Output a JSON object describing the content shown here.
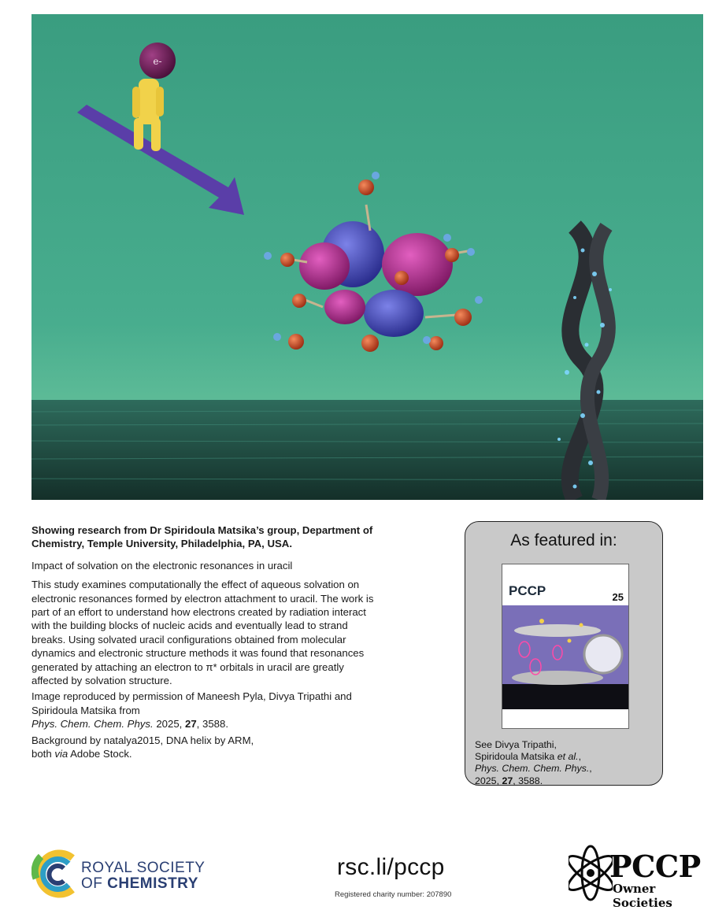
{
  "research_group": "Showing research from Dr Spiridoula Matsika’s group, Department of Chemistry, Temple University, Philadelphia, PA, USA.",
  "article_title": "Impact of solvation on the electronic resonances in uracil",
  "body": "This study examines computationally the effect of aqueous solvation on electronic resonances formed by electron attachment to uracil. The work is part of an effort to understand how electrons created by radiation interact with the building blocks of nucleic acids and eventually lead to strand breaks. Using solvated uracil configurations obtained from molecular dynamics and electronic structure methods it was found that resonances generated by attaching an electron to π* orbitals in uracil are greatly affected by solvation structure.",
  "image_credit": {
    "line": "Image reproduced by permission of Maneesh Pyla, Divya Tripathi and Spiridoula Matsika from",
    "journal": "Phys. Chem. Chem. Phys.",
    "year": "2025,",
    "volume": "27",
    "page": ", 3588."
  },
  "background_credit": {
    "line1": "Background by natalya2015, DNA helix by ARM,",
    "line2a": "both ",
    "via": "via",
    "line2b": " Adobe Stock."
  },
  "hero": {
    "electron_label": "e-"
  },
  "featured": {
    "heading": "As featured in:",
    "cover_title": "PCCP",
    "cover_anniversary": "25",
    "ref_line1": "See Divya Tripathi,",
    "ref_line2a": "Spiridoula Matsika ",
    "ref_etal": "et al.",
    "ref_line2b": ",",
    "ref_journal": "Phys. Chem. Chem. Phys.",
    "ref_line3": ",",
    "ref_year": "2025, ",
    "ref_volume": "27",
    "ref_page": ", 3588."
  },
  "footer": {
    "rsc_line1": "ROYAL SOCIETY",
    "rsc_line2_prefix": "OF ",
    "rsc_line2_bold": "CHEMISTRY",
    "url": "rsc.li/pccp",
    "charity": "Registered charity number: 207890",
    "pccp_word": "PCCP",
    "pccp_sub": "Owner Societies"
  },
  "colors": {
    "sky": "#3fa586",
    "sea": "#1f4e44",
    "arrow": "#5a3ea8",
    "figure": "#f1d24a",
    "electron": "#6b1f55",
    "orbital_blue": "#3c3fb0",
    "orbital_magenta": "#b02c8c",
    "rsc_blue": "#2a3f73"
  }
}
